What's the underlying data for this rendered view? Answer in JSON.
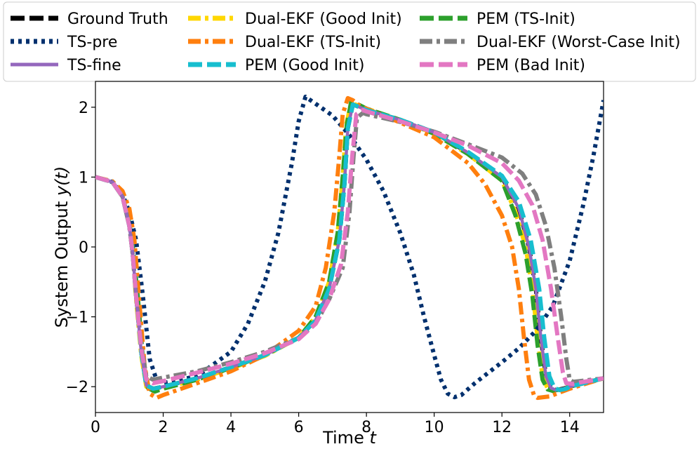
{
  "chart_data": {
    "type": "line",
    "title": "",
    "xlabel_text": "Time ",
    "xlabel_var": "t",
    "ylabel_text": "System Output ",
    "ylabel_var": "y(t)",
    "xlim": [
      0,
      15
    ],
    "ylim": [
      -2.37,
      2.37
    ],
    "xticks": [
      0,
      2,
      4,
      6,
      8,
      10,
      12,
      14
    ],
    "xtick_labels": [
      "0",
      "2",
      "4",
      "6",
      "8",
      "10",
      "12",
      "14"
    ],
    "yticks": [
      -2,
      -1,
      0,
      1,
      2
    ],
    "ytick_labels": [
      "−2",
      "−1",
      "0",
      "1",
      "2"
    ],
    "grid": false,
    "legend_position": "top, above plot, 3 columns",
    "series": [
      {
        "name": "Ground Truth",
        "color": "#000000",
        "dash": "dashed",
        "x": [
          0,
          0.5,
          0.8,
          1.0,
          1.1,
          1.2,
          1.35,
          1.5,
          1.7,
          2.0,
          3.0,
          4.0,
          5.0,
          6.0,
          6.5,
          6.9,
          7.2,
          7.35,
          7.45,
          7.6,
          7.8,
          8.0,
          9.0,
          10.0,
          11.0,
          12.0,
          12.5,
          12.8,
          13.0,
          13.15,
          13.3,
          13.45,
          13.6,
          13.8,
          14.0,
          15.0
        ],
        "y": [
          1.0,
          0.93,
          0.72,
          0.3,
          -0.1,
          -0.7,
          -1.5,
          -1.98,
          -2.03,
          -2.0,
          -1.88,
          -1.72,
          -1.55,
          -1.3,
          -1.05,
          -0.6,
          0.1,
          0.9,
          1.7,
          2.04,
          2.0,
          1.96,
          1.82,
          1.64,
          1.35,
          1.0,
          0.55,
          0.0,
          -0.6,
          -1.3,
          -1.85,
          -2.02,
          -2.05,
          -2.03,
          -2.0,
          -1.88
        ]
      },
      {
        "name": "Dual-EKF (Good Init)",
        "color": "#ffd700",
        "dash": "dashdot",
        "x": [
          0,
          0.5,
          0.8,
          1.0,
          1.1,
          1.2,
          1.35,
          1.5,
          1.7,
          2.0,
          3.0,
          4.0,
          5.0,
          6.0,
          6.5,
          6.9,
          7.15,
          7.3,
          7.4,
          7.55,
          7.8,
          8.0,
          9.0,
          10.0,
          11.0,
          12.0,
          12.4,
          12.7,
          12.9,
          13.05,
          13.2,
          13.35,
          13.5,
          13.8,
          14.0,
          15.0
        ],
        "y": [
          1.0,
          0.93,
          0.72,
          0.3,
          -0.1,
          -0.75,
          -1.55,
          -2.0,
          -2.05,
          -2.02,
          -1.9,
          -1.74,
          -1.56,
          -1.3,
          -1.0,
          -0.5,
          0.2,
          1.0,
          1.75,
          2.06,
          2.02,
          1.98,
          1.82,
          1.62,
          1.33,
          0.95,
          0.5,
          0.0,
          -0.6,
          -1.3,
          -1.85,
          -2.03,
          -2.06,
          -2.04,
          -2.0,
          -1.88
        ]
      },
      {
        "name": "PEM (TS-Init)",
        "color": "#2ca02c",
        "dash": "dashed",
        "x": [
          0,
          0.5,
          0.8,
          1.0,
          1.1,
          1.25,
          1.4,
          1.55,
          1.75,
          2.0,
          3.0,
          4.0,
          5.0,
          6.0,
          6.5,
          6.9,
          7.15,
          7.3,
          7.42,
          7.55,
          7.8,
          8.0,
          9.0,
          10.0,
          11.0,
          12.0,
          12.4,
          12.7,
          12.9,
          13.05,
          13.2,
          13.35,
          13.5,
          13.8,
          14.0,
          15.0
        ],
        "y": [
          1.0,
          0.93,
          0.72,
          0.35,
          0.0,
          -0.7,
          -1.6,
          -2.02,
          -2.07,
          -2.03,
          -1.9,
          -1.73,
          -1.55,
          -1.3,
          -1.0,
          -0.5,
          0.2,
          1.0,
          1.75,
          2.08,
          2.03,
          1.98,
          1.82,
          1.62,
          1.33,
          0.95,
          0.45,
          -0.1,
          -0.7,
          -1.4,
          -1.9,
          -2.04,
          -2.06,
          -2.03,
          -2.0,
          -1.88
        ]
      },
      {
        "name": "TS-pre",
        "color": "#00306e",
        "dash": "dotted",
        "x": [
          0,
          0.5,
          0.8,
          1.0,
          1.2,
          1.4,
          1.6,
          1.8,
          2.0,
          3.0,
          4.0,
          4.5,
          5.0,
          5.4,
          5.8,
          6.0,
          6.2,
          6.5,
          7.0,
          7.5,
          8.0,
          8.5,
          9.0,
          9.4,
          9.7,
          10.0,
          10.2,
          10.4,
          10.6,
          10.8,
          11.2,
          11.6,
          12.0,
          12.5,
          13.0,
          13.5,
          14.0,
          14.4,
          14.7,
          15.0
        ],
        "y": [
          1.0,
          0.93,
          0.75,
          0.5,
          0.1,
          -0.7,
          -1.6,
          -1.9,
          -1.95,
          -1.85,
          -1.5,
          -1.1,
          -0.5,
          0.2,
          1.2,
          1.8,
          2.15,
          2.05,
          1.88,
          1.6,
          1.25,
          0.8,
          0.2,
          -0.4,
          -1.0,
          -1.55,
          -1.9,
          -2.1,
          -2.15,
          -2.12,
          -1.95,
          -1.8,
          -1.65,
          -1.45,
          -1.2,
          -0.85,
          -0.2,
          0.6,
          1.3,
          2.1
        ]
      },
      {
        "name": "Dual-EKF (TS-Init)",
        "color": "#ff7f0e",
        "dash": "dashdot",
        "x": [
          0,
          0.5,
          0.8,
          1.0,
          1.15,
          1.3,
          1.45,
          1.6,
          1.8,
          2.0,
          3.0,
          4.0,
          5.0,
          6.0,
          6.5,
          6.8,
          7.05,
          7.2,
          7.3,
          7.45,
          7.6,
          7.8,
          9.0,
          10.0,
          11.0,
          11.5,
          12.0,
          12.3,
          12.5,
          12.65,
          12.8,
          12.95,
          13.05,
          13.4,
          14.0,
          15.0
        ],
        "y": [
          1.0,
          0.94,
          0.8,
          0.55,
          0.1,
          -0.8,
          -1.7,
          -2.1,
          -2.16,
          -2.12,
          -1.95,
          -1.78,
          -1.55,
          -1.2,
          -0.85,
          -0.3,
          0.5,
          1.3,
          1.9,
          2.13,
          2.1,
          2.02,
          1.78,
          1.57,
          1.2,
          0.9,
          0.45,
          0.0,
          -0.6,
          -1.3,
          -1.9,
          -2.13,
          -2.16,
          -2.14,
          -2.03,
          -1.88
        ]
      },
      {
        "name": "Dual-EKF (Worst-Case Init)",
        "color": "#7f7f7f",
        "dash": "dashdot",
        "x": [
          0,
          0.5,
          0.8,
          1.0,
          1.1,
          1.2,
          1.35,
          1.5,
          1.7,
          2.0,
          3.0,
          4.0,
          5.0,
          6.0,
          6.5,
          6.9,
          7.3,
          7.5,
          7.62,
          7.72,
          7.9,
          8.0,
          9.0,
          10.0,
          11.0,
          12.0,
          12.6,
          13.0,
          13.3,
          13.55,
          13.75,
          13.9,
          14.0,
          14.1,
          14.3,
          15.0
        ],
        "y": [
          1.0,
          0.93,
          0.72,
          0.3,
          -0.1,
          -0.7,
          -1.4,
          -1.85,
          -1.9,
          -1.87,
          -1.78,
          -1.65,
          -1.5,
          -1.3,
          -1.1,
          -0.75,
          -0.3,
          0.5,
          1.3,
          1.85,
          1.92,
          1.9,
          1.79,
          1.65,
          1.47,
          1.28,
          1.05,
          0.75,
          0.3,
          -0.3,
          -1.0,
          -1.6,
          -1.9,
          -1.93,
          -1.92,
          -1.88
        ]
      },
      {
        "name": "TS-fine",
        "color": "#9467bd",
        "dash": "solid",
        "x": [
          0,
          0.5,
          0.8,
          1.0,
          1.1,
          1.2,
          1.35,
          1.5,
          1.7,
          2.0,
          3.0,
          4.0,
          5.0,
          6.0,
          6.5,
          6.9,
          7.2,
          7.35,
          7.45,
          7.6,
          7.8,
          8.0,
          9.0,
          10.0,
          11.0,
          12.0,
          12.5,
          12.8,
          13.0,
          13.15,
          13.3,
          13.45,
          13.6,
          13.8,
          14.0,
          15.0
        ],
        "y": [
          1.0,
          0.93,
          0.72,
          0.3,
          -0.1,
          -0.7,
          -1.5,
          -1.98,
          -2.03,
          -2.0,
          -1.88,
          -1.72,
          -1.55,
          -1.3,
          -1.05,
          -0.6,
          0.1,
          0.9,
          1.7,
          2.04,
          2.0,
          1.96,
          1.82,
          1.64,
          1.35,
          1.0,
          0.55,
          0.0,
          -0.6,
          -1.3,
          -1.85,
          -2.02,
          -2.05,
          -2.03,
          -2.0,
          -1.88
        ]
      },
      {
        "name": "PEM (Good Init)",
        "color": "#17becf",
        "dash": "dashed",
        "x": [
          0,
          0.5,
          0.8,
          1.0,
          1.1,
          1.2,
          1.35,
          1.5,
          1.7,
          2.0,
          3.0,
          4.0,
          5.0,
          6.0,
          6.5,
          6.9,
          7.2,
          7.35,
          7.45,
          7.6,
          7.8,
          8.0,
          9.0,
          10.0,
          11.0,
          12.0,
          12.5,
          12.85,
          13.1,
          13.25,
          13.4,
          13.55,
          13.7,
          13.9,
          14.0,
          15.0
        ],
        "y": [
          1.0,
          0.93,
          0.72,
          0.3,
          -0.1,
          -0.7,
          -1.5,
          -1.98,
          -2.03,
          -2.0,
          -1.88,
          -1.72,
          -1.55,
          -1.3,
          -1.05,
          -0.6,
          0.1,
          0.9,
          1.7,
          2.04,
          2.0,
          1.96,
          1.82,
          1.64,
          1.36,
          1.02,
          0.65,
          0.1,
          -0.6,
          -1.3,
          -1.85,
          -2.02,
          -2.05,
          -2.03,
          -2.0,
          -1.88
        ]
      },
      {
        "name": "PEM (Bad Init)",
        "color": "#e377c2",
        "dash": "dashed",
        "x": [
          0,
          0.5,
          0.8,
          1.0,
          1.1,
          1.2,
          1.35,
          1.5,
          1.7,
          2.0,
          3.0,
          4.0,
          5.0,
          6.0,
          6.5,
          6.9,
          7.25,
          7.45,
          7.58,
          7.7,
          7.9,
          8.0,
          9.0,
          10.0,
          11.0,
          12.0,
          12.5,
          12.9,
          13.2,
          13.45,
          13.65,
          13.8,
          13.9,
          14.1,
          14.3,
          15.0
        ],
        "y": [
          1.0,
          0.93,
          0.72,
          0.3,
          -0.1,
          -0.7,
          -1.45,
          -1.9,
          -1.95,
          -1.92,
          -1.8,
          -1.67,
          -1.52,
          -1.32,
          -1.1,
          -0.75,
          -0.25,
          0.5,
          1.3,
          1.9,
          1.96,
          1.94,
          1.8,
          1.64,
          1.45,
          1.2,
          0.95,
          0.6,
          0.1,
          -0.6,
          -1.3,
          -1.8,
          -1.95,
          -1.96,
          -1.94,
          -1.88
        ]
      }
    ],
    "legend": [
      {
        "label": "Ground Truth",
        "color": "#000000",
        "dash": "dashed"
      },
      {
        "label": "Dual-EKF (Good Init)",
        "color": "#ffd700",
        "dash": "dashdot"
      },
      {
        "label": "PEM (TS-Init)",
        "color": "#2ca02c",
        "dash": "dashed"
      },
      {
        "label": "TS-pre",
        "color": "#00306e",
        "dash": "dotted"
      },
      {
        "label": "Dual-EKF (TS-Init)",
        "color": "#ff7f0e",
        "dash": "dashdot"
      },
      {
        "label": "Dual-EKF (Worst-Case Init)",
        "color": "#7f7f7f",
        "dash": "dashdot"
      },
      {
        "label": "TS-fine",
        "color": "#9467bd",
        "dash": "solid"
      },
      {
        "label": "PEM (Good Init)",
        "color": "#17becf",
        "dash": "dashed"
      },
      {
        "label": "PEM (Bad Init)",
        "color": "#e377c2",
        "dash": "dashed"
      }
    ]
  }
}
